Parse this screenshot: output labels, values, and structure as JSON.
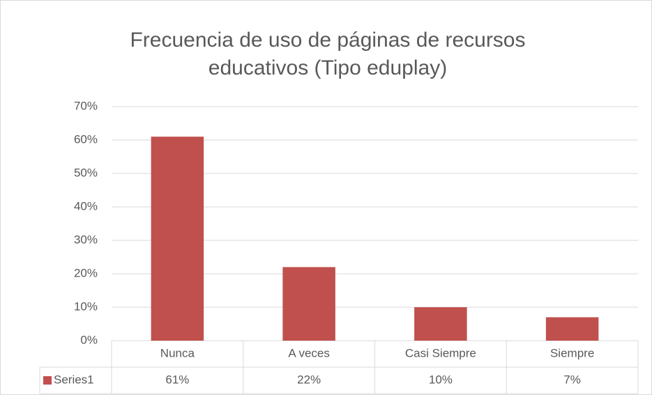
{
  "chart_data": {
    "type": "bar",
    "title": "Frecuencia de uso de páginas de recursos educativos (Tipo eduplay)",
    "categories": [
      "Nunca",
      "A veces",
      "Casi Siempre",
      "Siempre"
    ],
    "series": [
      {
        "name": "Series1",
        "color": "#c0504d",
        "values": [
          61,
          22,
          10,
          7
        ],
        "value_labels": [
          "61%",
          "22%",
          "10%",
          "7%"
        ]
      }
    ],
    "ylim": [
      0,
      70
    ],
    "yticks": [
      {
        "value": 0,
        "label": "0%"
      },
      {
        "value": 10,
        "label": "10%"
      },
      {
        "value": 20,
        "label": "20%"
      },
      {
        "value": 30,
        "label": "30%"
      },
      {
        "value": 40,
        "label": "40%"
      },
      {
        "value": 50,
        "label": "50%"
      },
      {
        "value": 60,
        "label": "60%"
      },
      {
        "value": 70,
        "label": "70%"
      }
    ],
    "grid": true
  }
}
